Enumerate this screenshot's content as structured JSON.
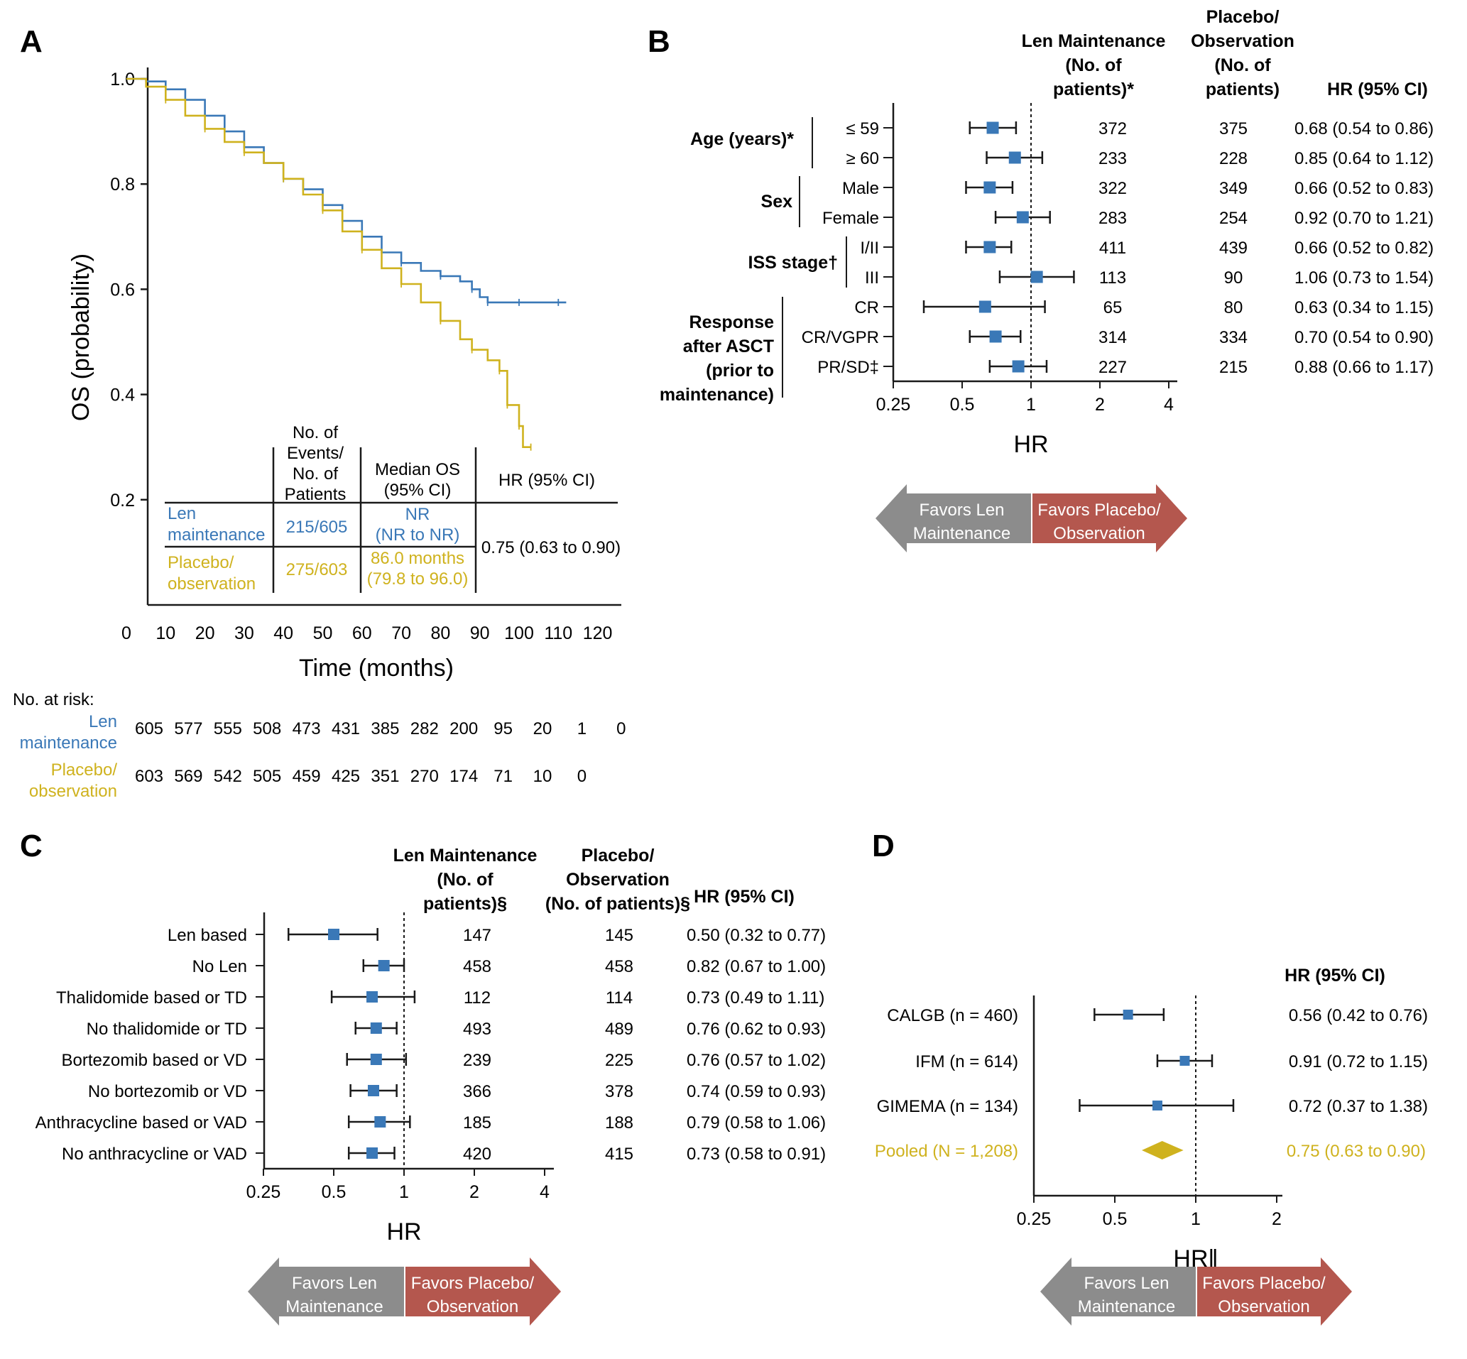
{
  "colors": {
    "len": "#3a78b7",
    "placebo": "#cfb21e",
    "square": "#3a78b7",
    "favors_len": "#8c8c8c",
    "favors_placebo": "#b4574e"
  },
  "panel_labels": {
    "a": "A",
    "b": "B",
    "c": "C",
    "d": "D"
  },
  "chart_data": [
    {
      "panel": "A",
      "type": "line",
      "xlabel": "Time (months)",
      "ylabel": "OS (probability)",
      "xlim": [
        0,
        120
      ],
      "ylim": [
        0,
        1.0
      ],
      "x_ticks": [
        "0",
        "10",
        "20",
        "30",
        "40",
        "50",
        "60",
        "70",
        "80",
        "90",
        "100",
        "110",
        "120"
      ],
      "y_ticks": [
        "0.2",
        "0.4",
        "0.6",
        "0.8",
        "1.0"
      ],
      "series": [
        {
          "name": "Len maintenance",
          "color": "#3a78b7",
          "points": [
            [
              0,
              1.0
            ],
            [
              5,
              0.995
            ],
            [
              10,
              0.98
            ],
            [
              15,
              0.96
            ],
            [
              20,
              0.93
            ],
            [
              25,
              0.9
            ],
            [
              30,
              0.87
            ],
            [
              35,
              0.84
            ],
            [
              40,
              0.81
            ],
            [
              45,
              0.79
            ],
            [
              50,
              0.76
            ],
            [
              55,
              0.73
            ],
            [
              60,
              0.7
            ],
            [
              65,
              0.67
            ],
            [
              70,
              0.65
            ],
            [
              75,
              0.635
            ],
            [
              80,
              0.625
            ],
            [
              85,
              0.615
            ],
            [
              88,
              0.6
            ],
            [
              90,
              0.585
            ],
            [
              92,
              0.575
            ],
            [
              95,
              0.575
            ],
            [
              100,
              0.575
            ],
            [
              105,
              0.575
            ],
            [
              110,
              0.575
            ],
            [
              112,
              0.575
            ]
          ]
        },
        {
          "name": "Placebo/ observation",
          "color": "#cfb21e",
          "points": [
            [
              0,
              1.0
            ],
            [
              5,
              0.985
            ],
            [
              10,
              0.96
            ],
            [
              15,
              0.93
            ],
            [
              20,
              0.905
            ],
            [
              25,
              0.88
            ],
            [
              30,
              0.86
            ],
            [
              35,
              0.84
            ],
            [
              40,
              0.81
            ],
            [
              45,
              0.78
            ],
            [
              50,
              0.75
            ],
            [
              55,
              0.71
            ],
            [
              60,
              0.675
            ],
            [
              65,
              0.64
            ],
            [
              70,
              0.61
            ],
            [
              75,
              0.575
            ],
            [
              80,
              0.54
            ],
            [
              85,
              0.505
            ],
            [
              88,
              0.485
            ],
            [
              92,
              0.465
            ],
            [
              95,
              0.445
            ],
            [
              97,
              0.44
            ],
            [
              97,
              0.38
            ],
            [
              100,
              0.375
            ],
            [
              100,
              0.34
            ],
            [
              101,
              0.3
            ],
            [
              103,
              0.3
            ]
          ]
        }
      ],
      "summary_table": {
        "headers": [
          "No. of Events/ No. of Patients",
          "Median OS (95% CI)",
          "HR (95% CI)"
        ],
        "rows": [
          {
            "label": [
              "Len",
              "maintenance"
            ],
            "events": "215/605",
            "median": [
              "NR",
              "(NR to NR)"
            ]
          },
          {
            "label": [
              "Placebo/",
              "observation"
            ],
            "events": "275/603",
            "median": [
              "86.0 months",
              "(79.8 to 96.0)"
            ]
          }
        ],
        "hr": "0.75 (0.63 to 0.90)"
      },
      "at_risk": {
        "title": "No. at risk:",
        "len_label": [
          "Len",
          "maintenance"
        ],
        "len": [
          "605",
          "577",
          "555",
          "508",
          "473",
          "431",
          "385",
          "282",
          "200",
          "95",
          "20",
          "1",
          "0"
        ],
        "placebo_label": [
          "Placebo/",
          "observation"
        ],
        "placebo": [
          "603",
          "569",
          "542",
          "505",
          "459",
          "425",
          "351",
          "270",
          "174",
          "71",
          "10",
          "0"
        ]
      }
    },
    {
      "panel": "B",
      "type": "scatter",
      "xlabel": "HR",
      "x_scale": "log2",
      "x_ticks": [
        "0.25",
        "0.5",
        "1",
        "2",
        "4"
      ],
      "headers": {
        "len": [
          "Len Maintenance",
          "(No. of",
          "patients)*"
        ],
        "placebo": [
          "Placebo/",
          "Observation",
          "(No. of",
          "patients)"
        ],
        "hr": "HR (95% CI)"
      },
      "groups": [
        {
          "label": [
            "Age (years)*"
          ],
          "rows": [
            0,
            1
          ]
        },
        {
          "label": [
            "Sex"
          ],
          "rows": [
            2,
            3
          ]
        },
        {
          "label": [
            "ISS stage†"
          ],
          "rows": [
            4,
            5
          ]
        },
        {
          "label": [
            "Response",
            "after ASCT",
            "(prior to",
            "maintenance)"
          ],
          "rows": [
            6,
            7,
            8
          ]
        }
      ],
      "rows": [
        {
          "label": "≤ 59",
          "hr": 0.68,
          "lo": 0.54,
          "hi": 0.86,
          "len_n": "372",
          "plc_n": "375",
          "ci": "0.68 (0.54 to 0.86)"
        },
        {
          "label": "≥ 60",
          "hr": 0.85,
          "lo": 0.64,
          "hi": 1.12,
          "len_n": "233",
          "plc_n": "228",
          "ci": "0.85 (0.64 to 1.12)"
        },
        {
          "label": "Male",
          "hr": 0.66,
          "lo": 0.52,
          "hi": 0.83,
          "len_n": "322",
          "plc_n": "349",
          "ci": "0.66 (0.52 to 0.83)"
        },
        {
          "label": "Female",
          "hr": 0.92,
          "lo": 0.7,
          "hi": 1.21,
          "len_n": "283",
          "plc_n": "254",
          "ci": "0.92 (0.70 to 1.21)"
        },
        {
          "label": "I/II",
          "hr": 0.66,
          "lo": 0.52,
          "hi": 0.82,
          "len_n": "411",
          "plc_n": "439",
          "ci": "0.66 (0.52 to 0.82)"
        },
        {
          "label": "III",
          "hr": 1.06,
          "lo": 0.73,
          "hi": 1.54,
          "len_n": "113",
          "plc_n": "90",
          "ci": "1.06 (0.73 to 1.54)"
        },
        {
          "label": "CR",
          "hr": 0.63,
          "lo": 0.34,
          "hi": 1.15,
          "len_n": "65",
          "plc_n": "80",
          "ci": "0.63 (0.34 to 1.15)"
        },
        {
          "label": "CR/VGPR",
          "hr": 0.7,
          "lo": 0.54,
          "hi": 0.9,
          "len_n": "314",
          "plc_n": "334",
          "ci": "0.70 (0.54 to 0.90)"
        },
        {
          "label": "PR/SD‡",
          "hr": 0.88,
          "lo": 0.66,
          "hi": 1.17,
          "len_n": "227",
          "plc_n": "215",
          "ci": "0.88 (0.66 to 1.17)"
        }
      ],
      "favors_len": [
        "Favors Len",
        "Maintenance"
      ],
      "favors_placebo": [
        "Favors Placebo/",
        "Observation"
      ]
    },
    {
      "panel": "C",
      "type": "scatter",
      "xlabel": "HR",
      "x_scale": "log2",
      "x_ticks": [
        "0.25",
        "0.5",
        "1",
        "2",
        "4"
      ],
      "headers": {
        "len": [
          "Len Maintenance",
          "(No. of",
          "patients)§"
        ],
        "placebo": [
          "Placebo/",
          "Observation",
          "(No. of patients)§"
        ],
        "hr": "HR (95% CI)"
      },
      "rows": [
        {
          "label": "Len based",
          "hr": 0.5,
          "lo": 0.32,
          "hi": 0.77,
          "len_n": "147",
          "plc_n": "145",
          "ci": "0.50 (0.32 to 0.77)"
        },
        {
          "label": "No Len",
          "hr": 0.82,
          "lo": 0.67,
          "hi": 1.0,
          "len_n": "458",
          "plc_n": "458",
          "ci": "0.82 (0.67 to 1.00)"
        },
        {
          "label": "Thalidomide based or TD",
          "hr": 0.73,
          "lo": 0.49,
          "hi": 1.11,
          "len_n": "112",
          "plc_n": "114",
          "ci": "0.73 (0.49 to 1.11)"
        },
        {
          "label": "No thalidomide or TD",
          "hr": 0.76,
          "lo": 0.62,
          "hi": 0.93,
          "len_n": "493",
          "plc_n": "489",
          "ci": "0.76 (0.62 to 0.93)"
        },
        {
          "label": "Bortezomib based or VD",
          "hr": 0.76,
          "lo": 0.57,
          "hi": 1.02,
          "len_n": "239",
          "plc_n": "225",
          "ci": "0.76 (0.57 to 1.02)"
        },
        {
          "label": "No bortezomib or VD",
          "hr": 0.74,
          "lo": 0.59,
          "hi": 0.93,
          "len_n": "366",
          "plc_n": "378",
          "ci": "0.74 (0.59 to 0.93)"
        },
        {
          "label": "Anthracycline based or VAD",
          "hr": 0.79,
          "lo": 0.58,
          "hi": 1.06,
          "len_n": "185",
          "plc_n": "188",
          "ci": "0.79 (0.58 to 1.06)"
        },
        {
          "label": "No anthracycline or VAD",
          "hr": 0.73,
          "lo": 0.58,
          "hi": 0.91,
          "len_n": "420",
          "plc_n": "415",
          "ci": "0.73 (0.58 to 0.91)"
        }
      ],
      "favors_len": [
        "Favors Len",
        "Maintenance"
      ],
      "favors_placebo": [
        "Favors Placebo/",
        "Observation"
      ]
    },
    {
      "panel": "D",
      "type": "scatter",
      "xlabel": "HR‖",
      "x_scale": "log2",
      "x_ticks": [
        "0.25",
        "0.5",
        "1",
        "2"
      ],
      "headers": {
        "hr": "HR (95% CI)"
      },
      "rows": [
        {
          "label": "CALGB (n = 460)",
          "hr": 0.56,
          "lo": 0.42,
          "hi": 0.76,
          "ci": "0.56 (0.42 to 0.76)"
        },
        {
          "label": "IFM (n = 614)",
          "hr": 0.91,
          "lo": 0.72,
          "hi": 1.15,
          "ci": "0.91 (0.72 to 1.15)"
        },
        {
          "label": "GIMEMA (n = 134)",
          "hr": 0.72,
          "lo": 0.37,
          "hi": 1.38,
          "ci": "0.72 (0.37 to 1.38)"
        }
      ],
      "pooled": {
        "label": "Pooled (N = 1,208)",
        "hr": 0.75,
        "lo": 0.63,
        "hi": 0.9,
        "ci": "0.75 (0.63 to 0.90)"
      },
      "favors_len": [
        "Favors Len",
        "Maintenance"
      ],
      "favors_placebo": [
        "Favors Placebo/",
        "Observation"
      ]
    }
  ]
}
